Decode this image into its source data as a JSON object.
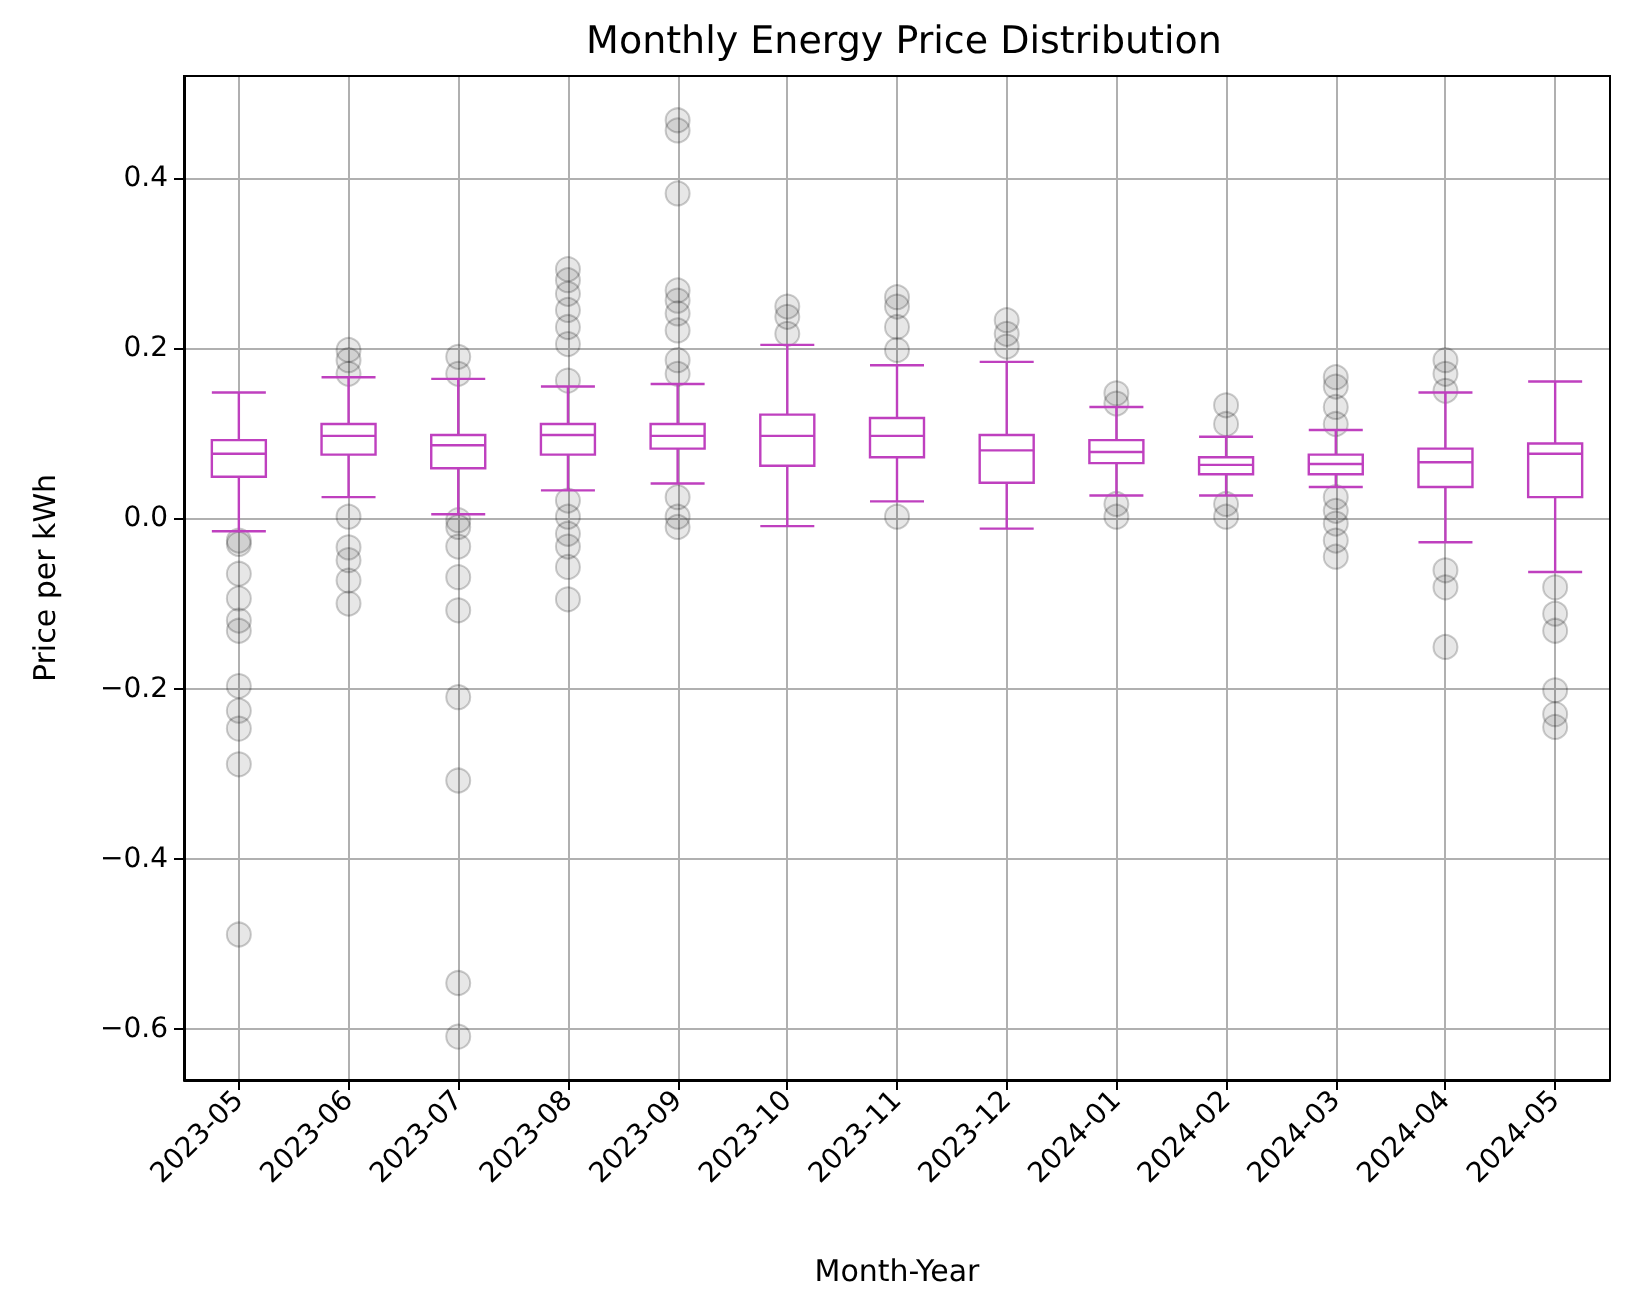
{
  "chart_data": {
    "type": "box",
    "title": "Monthly Energy Price Distribution",
    "xlabel": "Month-Year",
    "ylabel": "Price per kWh",
    "categories": [
      "2023-05",
      "2023-06",
      "2023-07",
      "2023-08",
      "2023-09",
      "2023-10",
      "2023-11",
      "2023-12",
      "2024-01",
      "2024-02",
      "2024-03",
      "2024-04",
      "2024-05"
    ],
    "color": "#bf40bf",
    "boxes": [
      {
        "low": -0.015,
        "q1": 0.049,
        "median": 0.076,
        "q3": 0.092,
        "high": 0.148,
        "outliers": [
          -0.026,
          -0.03,
          -0.065,
          -0.094,
          -0.12,
          -0.132,
          -0.197,
          -0.226,
          -0.247,
          -0.289,
          -0.489
        ]
      },
      {
        "low": 0.025,
        "q1": 0.075,
        "median": 0.097,
        "q3": 0.111,
        "high": 0.166,
        "outliers": [
          0.198,
          0.186,
          0.17,
          0.002,
          -0.034,
          -0.049,
          -0.073,
          -0.1
        ]
      },
      {
        "low": 0.005,
        "q1": 0.059,
        "median": 0.086,
        "q3": 0.098,
        "high": 0.164,
        "outliers": [
          0.19,
          0.17,
          -0.002,
          -0.01,
          -0.033,
          -0.069,
          -0.108,
          -0.21,
          -0.308,
          -0.546,
          -0.609
        ]
      },
      {
        "low": 0.033,
        "q1": 0.075,
        "median": 0.098,
        "q3": 0.111,
        "high": 0.155,
        "outliers": [
          0.293,
          0.28,
          0.264,
          0.245,
          0.225,
          0.205,
          0.162,
          0.021,
          0.002,
          -0.018,
          -0.033,
          -0.057,
          -0.095
        ]
      },
      {
        "low": 0.041,
        "q1": 0.082,
        "median": 0.097,
        "q3": 0.111,
        "high": 0.158,
        "outliers": [
          0.468,
          0.456,
          0.382,
          0.268,
          0.256,
          0.241,
          0.221,
          0.186,
          0.17,
          0.025,
          0.002,
          -0.01
        ]
      },
      {
        "low": -0.009,
        "q1": 0.062,
        "median": 0.097,
        "q3": 0.122,
        "high": 0.204,
        "outliers": [
          0.249,
          0.237,
          0.217
        ]
      },
      {
        "low": 0.02,
        "q1": 0.072,
        "median": 0.097,
        "q3": 0.118,
        "high": 0.18,
        "outliers": [
          0.26,
          0.249,
          0.225,
          0.198,
          0.002
        ]
      },
      {
        "low": -0.012,
        "q1": 0.042,
        "median": 0.08,
        "q3": 0.098,
        "high": 0.184,
        "outliers": [
          0.233,
          0.217,
          0.202
        ]
      },
      {
        "low": 0.027,
        "q1": 0.065,
        "median": 0.078,
        "q3": 0.092,
        "high": 0.131,
        "outliers": [
          0.147,
          0.135,
          0.017,
          0.002
        ]
      },
      {
        "low": 0.027,
        "q1": 0.052,
        "median": 0.063,
        "q3": 0.072,
        "high": 0.096,
        "outliers": [
          0.133,
          0.111,
          0.017,
          0.002
        ]
      },
      {
        "low": 0.037,
        "q1": 0.052,
        "median": 0.064,
        "q3": 0.075,
        "high": 0.104,
        "outliers": [
          0.166,
          0.155,
          0.131,
          0.111,
          0.025,
          0.009,
          -0.006,
          -0.026,
          -0.045
        ]
      },
      {
        "low": -0.028,
        "q1": 0.037,
        "median": 0.066,
        "q3": 0.082,
        "high": 0.148,
        "outliers": [
          0.186,
          0.17,
          0.15,
          -0.061,
          -0.081,
          -0.151
        ]
      },
      {
        "low": -0.063,
        "q1": 0.025,
        "median": 0.076,
        "q3": 0.088,
        "high": 0.161,
        "outliers": [
          -0.081,
          -0.112,
          -0.132,
          -0.202,
          -0.23,
          -0.245
        ]
      }
    ],
    "ylim": [
      -0.66,
      0.52
    ],
    "yticks": [
      {
        "value": -0.6,
        "label": "−0.6"
      },
      {
        "value": -0.4,
        "label": "−0.4"
      },
      {
        "value": -0.2,
        "label": "−0.2"
      },
      {
        "value": 0,
        "label": "0.0"
      },
      {
        "value": 0.2,
        "label": "0.2"
      },
      {
        "value": 0.4,
        "label": "0.4"
      }
    ],
    "grid": true
  }
}
